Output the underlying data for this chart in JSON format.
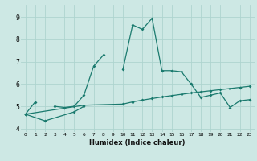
{
  "title": "",
  "xlabel": "Humidex (Indice chaleur)",
  "bg_color": "#cde8e4",
  "grid_color": "#aed4cf",
  "line_color": "#1a7a6e",
  "xlim": [
    -0.5,
    23.5
  ],
  "ylim": [
    3.85,
    9.55
  ],
  "xticks": [
    0,
    1,
    2,
    3,
    4,
    5,
    6,
    7,
    8,
    9,
    10,
    11,
    12,
    13,
    14,
    15,
    16,
    17,
    18,
    19,
    20,
    21,
    22,
    23
  ],
  "yticks": [
    4,
    5,
    6,
    7,
    8,
    9
  ],
  "line1_x": [
    0,
    1,
    2,
    3,
    4,
    5,
    6,
    7,
    8,
    9,
    10,
    11,
    12,
    13,
    14,
    15,
    16,
    17,
    18,
    19,
    20,
    21,
    22,
    23
  ],
  "line1_y": [
    4.65,
    5.2,
    null,
    5.0,
    4.95,
    5.0,
    5.5,
    6.8,
    7.3,
    null,
    6.65,
    8.65,
    8.45,
    8.95,
    6.6,
    6.6,
    6.55,
    6.0,
    5.4,
    5.5,
    5.6,
    4.95,
    5.25,
    5.3
  ],
  "line2_x": [
    0,
    2,
    5,
    6
  ],
  "line2_y": [
    4.65,
    4.35,
    4.75,
    5.0
  ],
  "line3_x": [
    0,
    6,
    10,
    11,
    12,
    13,
    14,
    15,
    16,
    17,
    18,
    19,
    20,
    21,
    22,
    23
  ],
  "line3_y": [
    4.65,
    5.05,
    5.1,
    5.2,
    5.28,
    5.35,
    5.42,
    5.48,
    5.54,
    5.6,
    5.65,
    5.7,
    5.75,
    5.8,
    5.85,
    5.9
  ]
}
